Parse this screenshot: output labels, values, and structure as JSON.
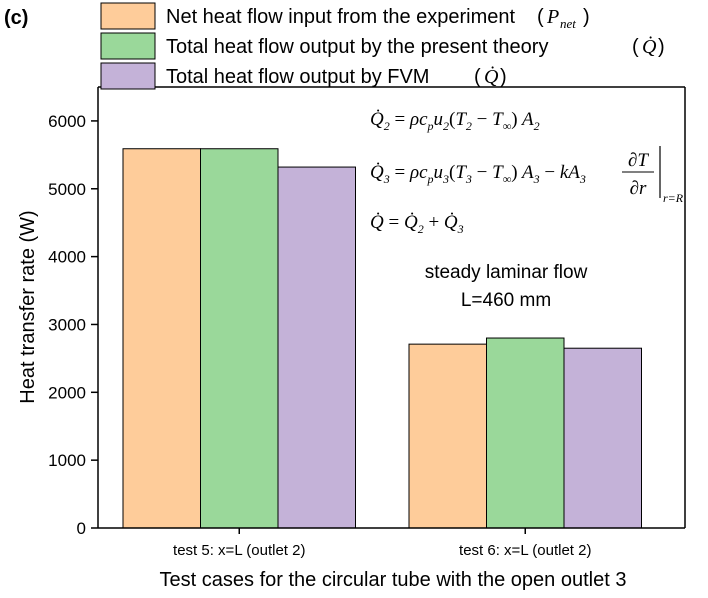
{
  "panel_label": "(c)",
  "colors": {
    "experiment": "#FECC9A",
    "theory": "#9AD89A",
    "fvm": "#C4B2D8",
    "axis": "#000000"
  },
  "chart_data": {
    "type": "bar",
    "categories": [
      "test 5: x=L (outlet 2)",
      "test 6: x=L (outlet 2)"
    ],
    "series": [
      {
        "name": "Net heat flow input from the experiment",
        "symbol": "P",
        "subscript": "net",
        "values": [
          5590,
          2710
        ]
      },
      {
        "name": "Total heat flow output by the present theory",
        "symbol": "Q̇",
        "subscript": "",
        "values": [
          5590,
          2800
        ]
      },
      {
        "name": "Total heat flow output by FVM",
        "symbol": "Q̇",
        "subscript": "",
        "values": [
          5320,
          2650
        ]
      }
    ],
    "xlabel": "Test cases for the circular tube with the open outlet 3",
    "ylabel": "Heat transfer rate (W)",
    "ylim": [
      0,
      6500
    ],
    "yticks": [
      0,
      1000,
      2000,
      3000,
      4000,
      5000,
      6000
    ],
    "legend_position": "top-left",
    "grid": false
  },
  "annotation": {
    "line1": "steady laminar flow",
    "line2": "L=460 mm"
  },
  "equations": {
    "eq1": "Q̇₂ = ρc_p u₂(T₂ − T∞) A₂",
    "eq2": "Q̇₃ = ρc_p u₃(T₃ − T∞) A₃ − kA₃ ∂T/∂r |r=R",
    "eq3": "Q̇ = Q̇₂ + Q̇₃"
  }
}
